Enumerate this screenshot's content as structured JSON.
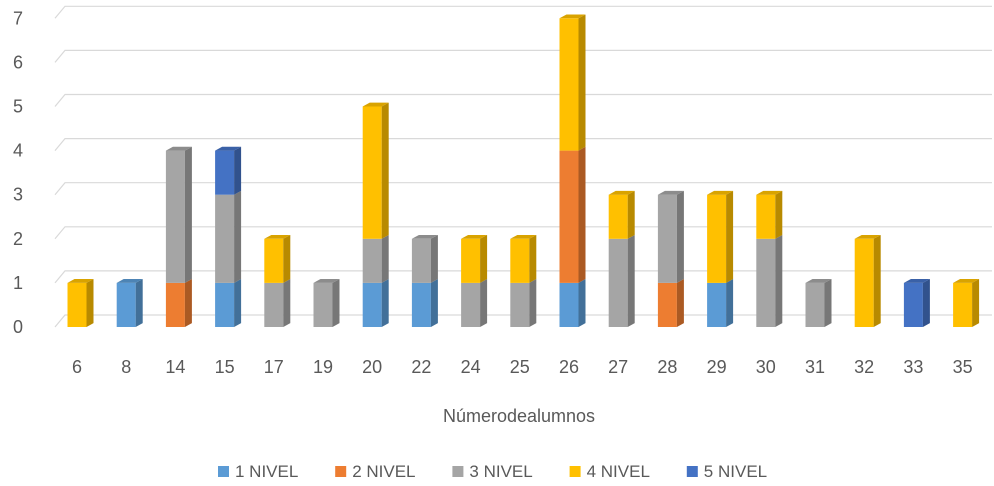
{
  "chart_data": {
    "type": "bar",
    "stacked": true,
    "style": "3d-column",
    "title": "",
    "xlabel": "Númerodealumnos",
    "ylabel": "",
    "ylim": [
      0,
      7
    ],
    "yticks": [
      0,
      1,
      2,
      3,
      4,
      5,
      6,
      7
    ],
    "grid": true,
    "legend_position": "bottom",
    "categories": [
      "6",
      "8",
      "14",
      "15",
      "17",
      "19",
      "20",
      "22",
      "24",
      "25",
      "26",
      "27",
      "28",
      "29",
      "30",
      "31",
      "32",
      "33",
      "35"
    ],
    "series": [
      {
        "name": "1 NIVEL",
        "color": "#5B9BD5",
        "values": [
          0,
          1,
          0,
          1,
          0,
          0,
          1,
          1,
          0,
          0,
          1,
          0,
          0,
          1,
          0,
          0,
          0,
          0,
          0
        ]
      },
      {
        "name": "2 NIVEL",
        "color": "#ED7D31",
        "values": [
          0,
          0,
          1,
          0,
          0,
          0,
          0,
          0,
          0,
          0,
          3,
          0,
          1,
          0,
          0,
          0,
          0,
          0,
          0
        ]
      },
      {
        "name": "3 NIVEL",
        "color": "#A5A5A5",
        "values": [
          0,
          0,
          3,
          2,
          1,
          1,
          1,
          1,
          1,
          1,
          0,
          2,
          2,
          0,
          2,
          1,
          0,
          0,
          0
        ]
      },
      {
        "name": "4 NIVEL",
        "color": "#FFC000",
        "values": [
          1,
          0,
          0,
          0,
          1,
          0,
          3,
          0,
          1,
          1,
          3,
          1,
          0,
          2,
          1,
          0,
          2,
          0,
          1
        ]
      },
      {
        "name": "5 NIVEL",
        "color": "#4472C4",
        "values": [
          0,
          0,
          0,
          1,
          0,
          0,
          0,
          0,
          0,
          0,
          0,
          0,
          0,
          0,
          0,
          0,
          0,
          1,
          0
        ]
      }
    ]
  }
}
